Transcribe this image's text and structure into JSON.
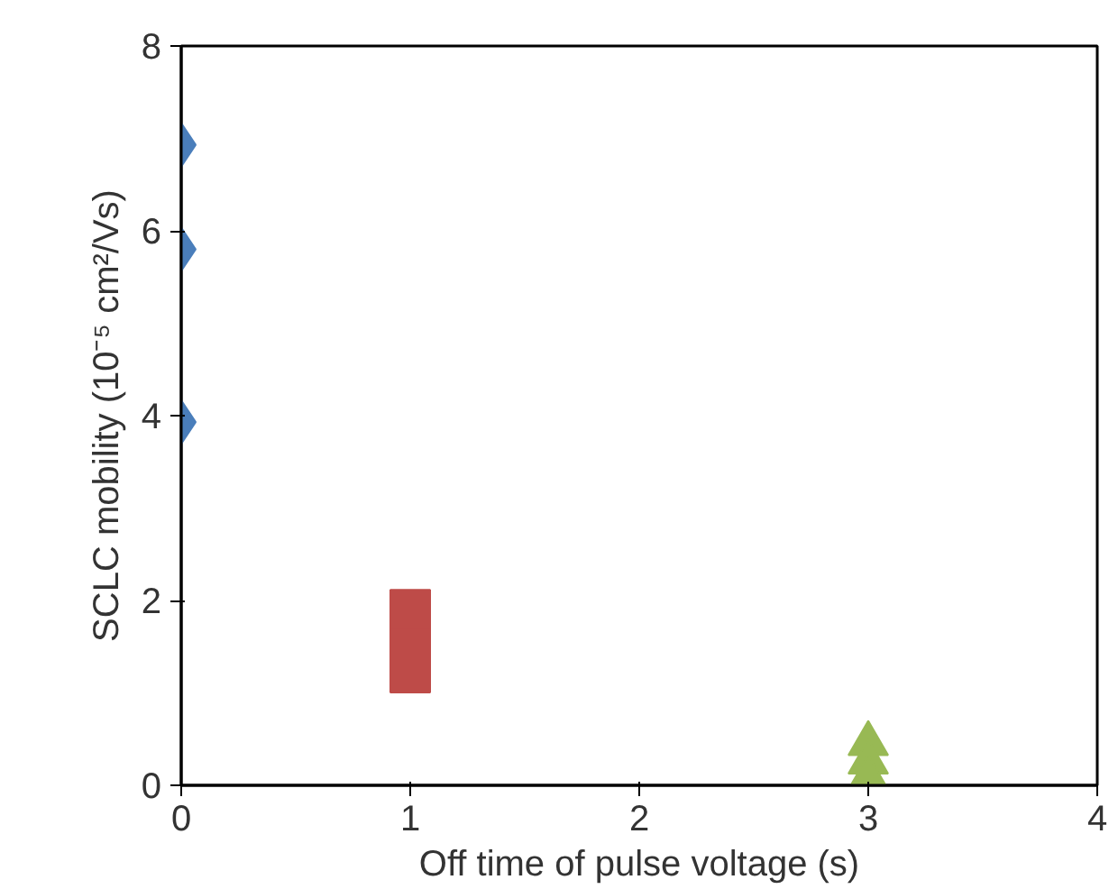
{
  "chart_data": {
    "type": "scatter",
    "xlabel": "Off time of pulse voltage (s)",
    "ylabel": "SCLC mobility (10⁻⁵ cm²/Vs)",
    "xlim": [
      0,
      4
    ],
    "ylim": [
      0,
      8
    ],
    "xticks": [
      0,
      1,
      2,
      3,
      4
    ],
    "yticks": [
      0,
      2,
      4,
      6,
      8
    ],
    "grid": false,
    "series": [
      {
        "color": "#4a7ebb",
        "marker": "diamond",
        "x": [
          0,
          0,
          0
        ],
        "values": [
          6.93,
          5.8,
          3.93
        ]
      },
      {
        "color": "#be4b48",
        "marker": "square",
        "x": [
          1,
          1,
          1
        ],
        "values": [
          1.22,
          1.56,
          1.9
        ]
      },
      {
        "color": "#98b954",
        "marker": "triangle",
        "x": [
          3,
          3,
          3
        ],
        "values": [
          0.45,
          0.25,
          0.08
        ]
      }
    ]
  }
}
